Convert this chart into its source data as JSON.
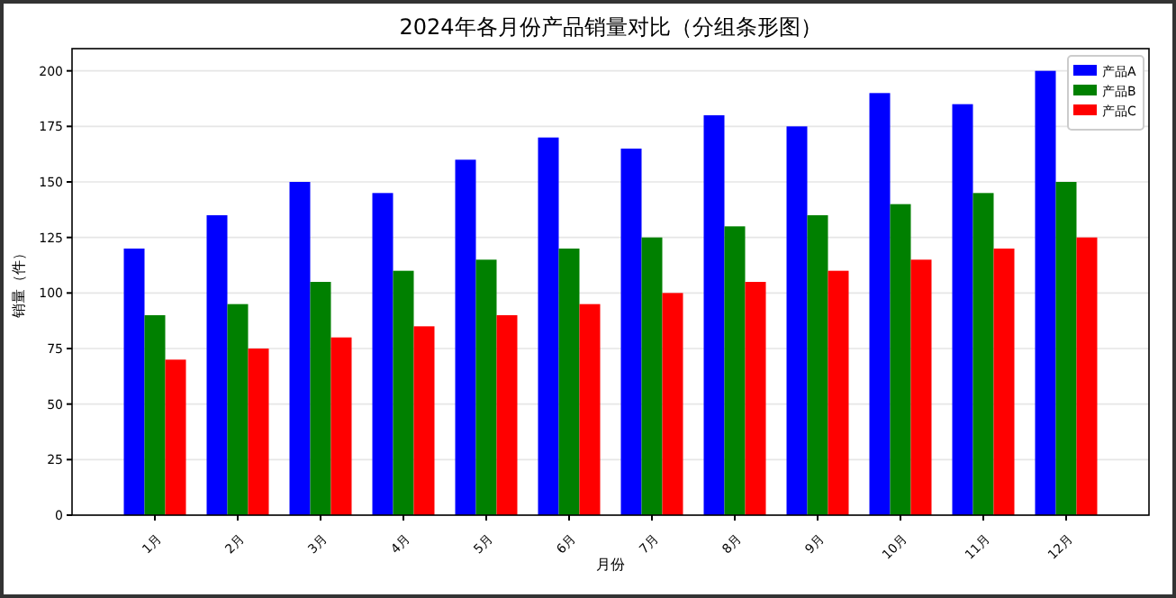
{
  "chart_data": {
    "type": "bar",
    "title": "2024年各月份产品销量对比（分组条形图）",
    "xlabel": "月份",
    "ylabel": "销量（件）",
    "categories": [
      "1月",
      "2月",
      "3月",
      "4月",
      "5月",
      "6月",
      "7月",
      "8月",
      "9月",
      "10月",
      "11月",
      "12月"
    ],
    "series": [
      {
        "name": "产品A",
        "color": "#0000ff",
        "values": [
          120,
          135,
          150,
          145,
          160,
          170,
          165,
          180,
          175,
          190,
          185,
          200
        ]
      },
      {
        "name": "产品B",
        "color": "#008000",
        "values": [
          90,
          95,
          105,
          110,
          115,
          120,
          125,
          130,
          135,
          140,
          145,
          150
        ]
      },
      {
        "name": "产品C",
        "color": "#ff0000",
        "values": [
          70,
          75,
          80,
          85,
          90,
          95,
          100,
          105,
          110,
          115,
          120,
          125
        ]
      }
    ],
    "ylim": [
      0,
      210
    ],
    "yticks": [
      0,
      25,
      50,
      75,
      100,
      125,
      150,
      175,
      200
    ],
    "grid": "y",
    "legend": "top right"
  }
}
